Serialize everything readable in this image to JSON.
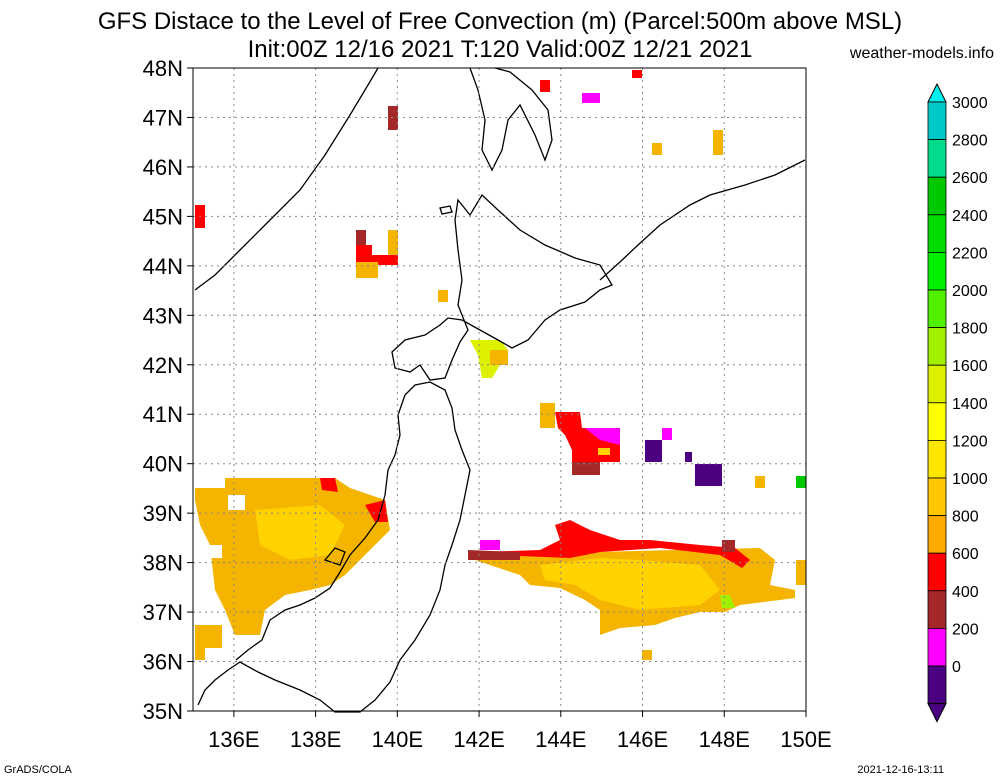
{
  "title_line1": "GFS Distace to the Level of Free Convection (m) (Parcel:500m above MSL)",
  "title_line2": "Init:00Z 12/16 2021 T:120 Valid:00Z 12/21 2021",
  "site": "weather-models.info",
  "footer_left": "GrADS/COLA",
  "footer_right": "2021-12-16-13:11",
  "map": {
    "lat_labels": [
      "48N",
      "47N",
      "46N",
      "45N",
      "44N",
      "43N",
      "42N",
      "41N",
      "40N",
      "39N",
      "38N",
      "37N",
      "36N",
      "35N"
    ],
    "lon_labels": [
      "136E",
      "138E",
      "140E",
      "142E",
      "144E",
      "146E",
      "148E",
      "150E"
    ],
    "lat_range": [
      35,
      48
    ],
    "lon_range": [
      135,
      150
    ],
    "grid": "dotted"
  },
  "colorbar": {
    "labels": [
      "3000",
      "2800",
      "2600",
      "2400",
      "2200",
      "2000",
      "1800",
      "1600",
      "1400",
      "1200",
      "1000",
      "800",
      "600",
      "400",
      "200",
      "0"
    ],
    "colors": [
      "#00c8c8",
      "#00dc8c",
      "#00c800",
      "#00dc00",
      "#00f000",
      "#50f000",
      "#a0f000",
      "#dcf000",
      "#ffff00",
      "#ffe600",
      "#ffc800",
      "#ffaa00",
      "#ff0000",
      "#a52828",
      "#ff00ff",
      "#4b0082"
    ],
    "top_arrow_color": "#00f0f0",
    "bottom_arrow_color": "#4b0082"
  }
}
